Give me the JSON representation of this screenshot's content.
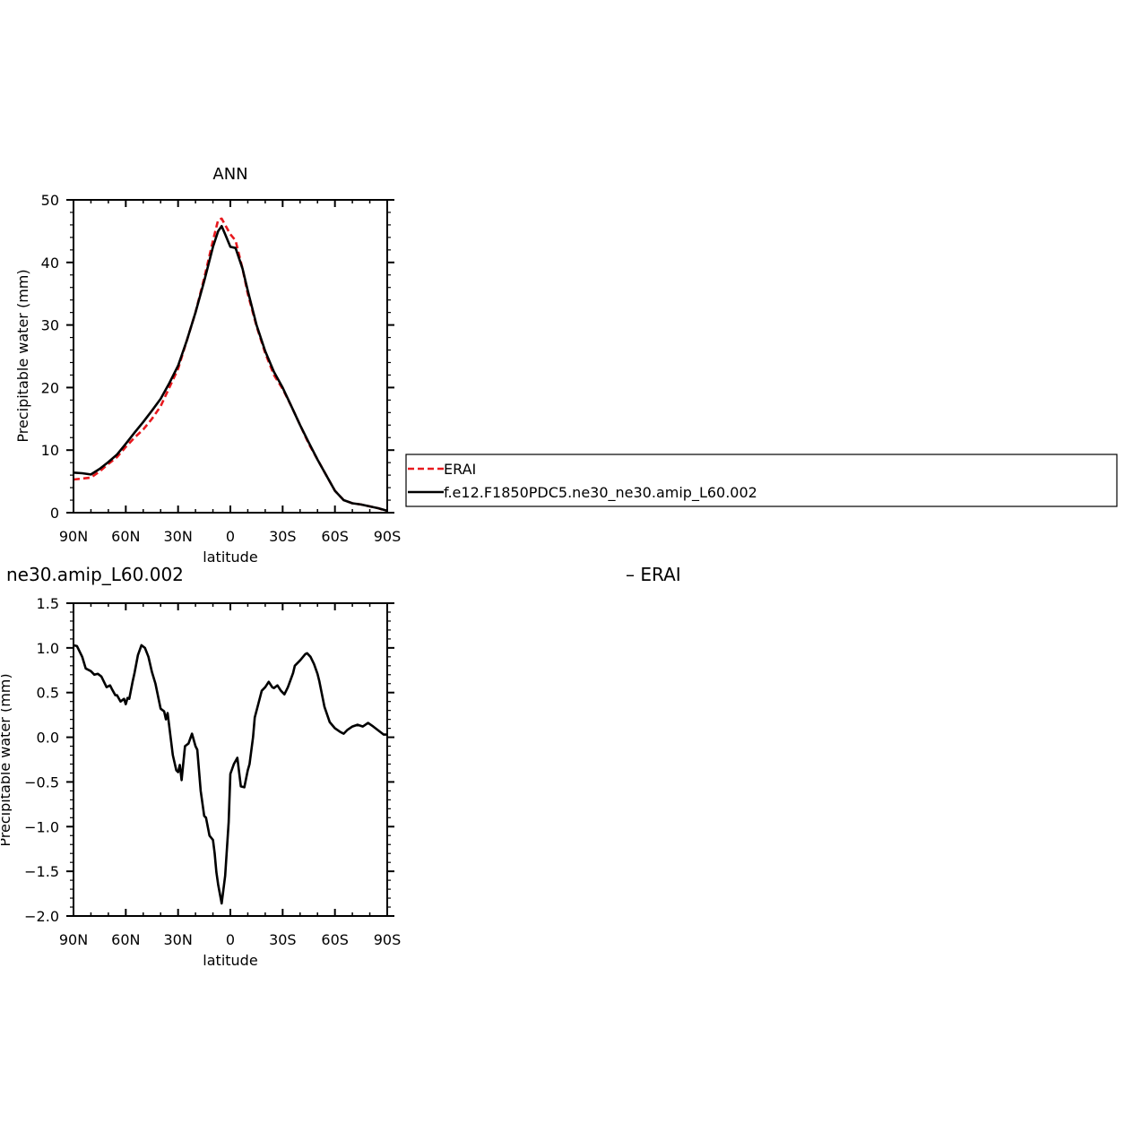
{
  "chart_data": [
    {
      "type": "line",
      "title": "ANN",
      "xlabel": "latitude",
      "ylabel": "Precipitable water (mm)",
      "xlim": [
        90,
        -90
      ],
      "ylim": [
        0,
        50
      ],
      "x_ticks": [
        {
          "value": 90,
          "label": "90N"
        },
        {
          "value": 60,
          "label": "60N"
        },
        {
          "value": 30,
          "label": "30N"
        },
        {
          "value": 0,
          "label": "0"
        },
        {
          "value": -30,
          "label": "30S"
        },
        {
          "value": -60,
          "label": "60S"
        },
        {
          "value": -90,
          "label": "90S"
        }
      ],
      "y_ticks": [
        {
          "value": 0,
          "label": "0"
        },
        {
          "value": 10,
          "label": "10"
        },
        {
          "value": 20,
          "label": "20"
        },
        {
          "value": 30,
          "label": "30"
        },
        {
          "value": 40,
          "label": "40"
        },
        {
          "value": 50,
          "label": "50"
        }
      ],
      "legend_position": "right",
      "series": [
        {
          "name": "ERAI",
          "color": "#e8191e",
          "dash": "dashed",
          "x": [
            90,
            80,
            75,
            70,
            65,
            60,
            55,
            50,
            45,
            40,
            35,
            30,
            25,
            20,
            15,
            10,
            7,
            5,
            2,
            0,
            -3,
            -7,
            -10,
            -15,
            -20,
            -25,
            -30,
            -35,
            -40,
            -45,
            -50,
            -55,
            -60,
            -65,
            -70,
            -75,
            -80,
            -85,
            -88,
            -90
          ],
          "y": [
            5.3,
            5.6,
            6.6,
            7.8,
            8.9,
            10.5,
            12.0,
            13.3,
            15.0,
            17.0,
            20.0,
            23.0,
            27.5,
            32.0,
            37.5,
            43.5,
            46.8,
            47.0,
            45.5,
            44.5,
            43.5,
            39.0,
            35.0,
            29.8,
            25.5,
            22.0,
            19.8,
            17.0,
            14.0,
            11.0,
            8.5,
            6.0,
            3.5,
            2.0,
            1.5,
            1.3,
            1.0,
            0.7,
            0.4,
            0.3
          ]
        },
        {
          "name": "f.e12.F1850PDC5.ne30_ne30.amip_L60.002",
          "color": "#000000",
          "dash": "solid",
          "x": [
            90,
            85,
            80,
            75,
            70,
            65,
            60,
            55,
            50,
            45,
            40,
            35,
            30,
            25,
            20,
            15,
            10,
            7,
            5,
            3,
            0,
            -3,
            -7,
            -10,
            -15,
            -20,
            -25,
            -30,
            -35,
            -40,
            -45,
            -50,
            -55,
            -60,
            -65,
            -70,
            -75,
            -80,
            -85,
            -90
          ],
          "y": [
            6.4,
            6.3,
            6.1,
            7.0,
            8.1,
            9.3,
            11.0,
            12.8,
            14.5,
            16.3,
            18.2,
            20.7,
            23.5,
            27.5,
            32.0,
            37.0,
            42.5,
            45.0,
            45.8,
            44.5,
            42.5,
            42.3,
            39.0,
            35.5,
            30.0,
            25.8,
            22.5,
            20.0,
            17.0,
            14.0,
            11.2,
            8.5,
            6.0,
            3.5,
            2.0,
            1.5,
            1.3,
            1.0,
            0.7,
            0.3
          ]
        }
      ],
      "legend": {
        "entries": [
          {
            "label": "ERAI",
            "color": "#e8191e",
            "dash": "dashed"
          },
          {
            "label": "f.e12.F1850PDC5.ne30_ne30.amip_L60.002",
            "color": "#000000",
            "dash": "solid"
          }
        ]
      }
    },
    {
      "type": "line",
      "title": "ne30.amip_L60.002",
      "title_right": "–  ERAI",
      "xlabel": "latitude",
      "ylabel": "Precipitable water (mm)",
      "xlim": [
        90,
        -90
      ],
      "ylim": [
        -2.0,
        1.5
      ],
      "x_ticks": [
        {
          "value": 90,
          "label": "90N"
        },
        {
          "value": 60,
          "label": "60N"
        },
        {
          "value": 30,
          "label": "30N"
        },
        {
          "value": 0,
          "label": "0"
        },
        {
          "value": -30,
          "label": "30S"
        },
        {
          "value": -60,
          "label": "60S"
        },
        {
          "value": -90,
          "label": "90S"
        }
      ],
      "y_ticks": [
        {
          "value": -2.0,
          "label": "−2.0"
        },
        {
          "value": -1.5,
          "label": "−1.5"
        },
        {
          "value": -1.0,
          "label": "−1.0"
        },
        {
          "value": -0.5,
          "label": "−0.5"
        },
        {
          "value": 0.0,
          "label": "0.0"
        },
        {
          "value": 0.5,
          "label": "0.5"
        },
        {
          "value": 1.0,
          "label": "1.0"
        },
        {
          "value": 1.5,
          "label": "1.5"
        }
      ],
      "series": [
        {
          "name": "",
          "color": "#000000",
          "dash": "solid",
          "x": [
            90,
            88,
            85,
            83,
            80,
            78,
            76,
            74,
            71,
            69,
            68,
            66,
            65,
            63,
            61,
            60,
            59,
            58,
            56,
            55,
            53,
            51,
            49,
            47,
            45,
            43,
            40,
            38,
            37,
            36,
            33,
            31,
            30,
            29,
            28,
            26,
            24,
            22,
            20,
            19,
            17,
            15,
            14,
            12,
            10,
            9,
            8,
            7,
            5,
            3,
            1,
            0,
            -2,
            -4,
            -6,
            -8,
            -10,
            -11,
            -13,
            -14,
            -16,
            -18,
            -20,
            -22,
            -24,
            -25,
            -27,
            -29,
            -31,
            -33,
            -36,
            -37,
            -40,
            -43,
            -44,
            -46,
            -48,
            -50,
            -51,
            -54,
            -57,
            -60,
            -63,
            -65,
            -67,
            -70,
            -73,
            -76,
            -79,
            -82,
            -84,
            -86,
            -88,
            -90
          ],
          "y": [
            1.03,
            1.02,
            0.9,
            0.77,
            0.74,
            0.7,
            0.71,
            0.68,
            0.56,
            0.58,
            0.54,
            0.47,
            0.47,
            0.4,
            0.43,
            0.37,
            0.44,
            0.43,
            0.63,
            0.72,
            0.92,
            1.03,
            1.0,
            0.9,
            0.73,
            0.6,
            0.32,
            0.29,
            0.2,
            0.27,
            -0.2,
            -0.37,
            -0.39,
            -0.31,
            -0.48,
            -0.1,
            -0.07,
            0.04,
            -0.1,
            -0.14,
            -0.6,
            -0.88,
            -0.9,
            -1.1,
            -1.15,
            -1.3,
            -1.51,
            -1.65,
            -1.86,
            -1.55,
            -0.95,
            -0.41,
            -0.3,
            -0.23,
            -0.55,
            -0.56,
            -0.37,
            -0.3,
            0.0,
            0.22,
            0.37,
            0.52,
            0.56,
            0.62,
            0.56,
            0.55,
            0.58,
            0.52,
            0.48,
            0.56,
            0.72,
            0.8,
            0.86,
            0.93,
            0.94,
            0.9,
            0.82,
            0.71,
            0.63,
            0.34,
            0.17,
            0.1,
            0.06,
            0.04,
            0.08,
            0.12,
            0.14,
            0.12,
            0.16,
            0.12,
            0.09,
            0.06,
            0.03,
            0.03
          ]
        }
      ]
    }
  ]
}
